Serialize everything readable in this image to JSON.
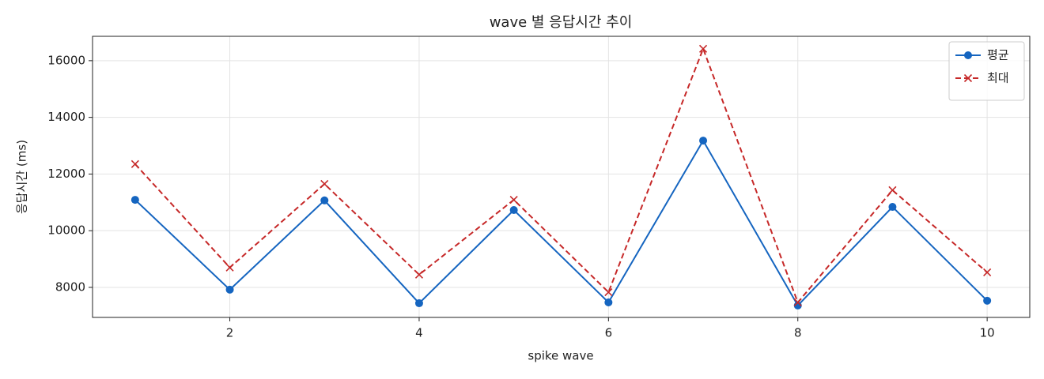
{
  "chart_data": {
    "type": "line",
    "title": "wave 별 응답시간 추이",
    "x_label": "spike wave",
    "y_label": "응답시간 (ms)",
    "x": [
      1,
      2,
      3,
      4,
      5,
      6,
      7,
      8,
      9,
      10
    ],
    "series": [
      {
        "name": "평균",
        "color": "#1565c0",
        "marker": "o",
        "linestyle": "solid",
        "values": [
          11090,
          7920,
          11070,
          7440,
          10730,
          7470,
          13180,
          7360,
          10840,
          7530
        ]
      },
      {
        "name": "최대",
        "color": "#c62828",
        "marker": "x",
        "linestyle": "dashed",
        "values": [
          12350,
          8700,
          11650,
          8450,
          11090,
          7830,
          16420,
          7470,
          11430,
          8530
        ]
      }
    ],
    "xlim": [
      0.55,
      10.45
    ],
    "xticks": [
      2,
      4,
      6,
      8,
      10
    ],
    "ylim": [
      6940,
      16860
    ],
    "yticks": [
      8000,
      10000,
      12000,
      14000,
      16000
    ],
    "grid": true,
    "legend": "upper right"
  }
}
